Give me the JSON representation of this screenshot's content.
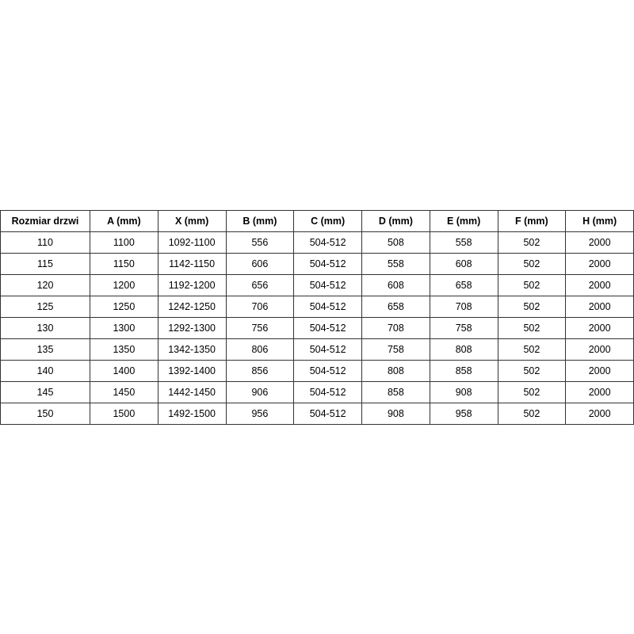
{
  "table": {
    "header": [
      "Rozmiar drzwi",
      "A (mm)",
      "X (mm)",
      "B (mm)",
      "C (mm)",
      "D (mm)",
      "E (mm)",
      "F (mm)",
      "H (mm)"
    ],
    "rows": [
      [
        110,
        1100,
        "1092-1100",
        556,
        "504-512",
        508,
        558,
        502,
        2000
      ],
      [
        115,
        1150,
        "1142-1150",
        606,
        "504-512",
        558,
        608,
        502,
        2000
      ],
      [
        120,
        1200,
        "1192-1200",
        656,
        "504-512",
        608,
        658,
        502,
        2000
      ],
      [
        125,
        1250,
        "1242-1250",
        706,
        "504-512",
        658,
        708,
        502,
        2000
      ],
      [
        130,
        1300,
        "1292-1300",
        756,
        "504-512",
        708,
        758,
        502,
        2000
      ],
      [
        135,
        1350,
        "1342-1350",
        806,
        "504-512",
        758,
        808,
        502,
        2000
      ],
      [
        140,
        1400,
        "1392-1400",
        856,
        "504-512",
        808,
        858,
        502,
        2000
      ],
      [
        145,
        1450,
        "1442-1450",
        906,
        "504-512",
        858,
        908,
        502,
        2000
      ],
      [
        150,
        1500,
        "1492-1500",
        956,
        "504-512",
        908,
        958,
        502,
        2000
      ]
    ]
  }
}
